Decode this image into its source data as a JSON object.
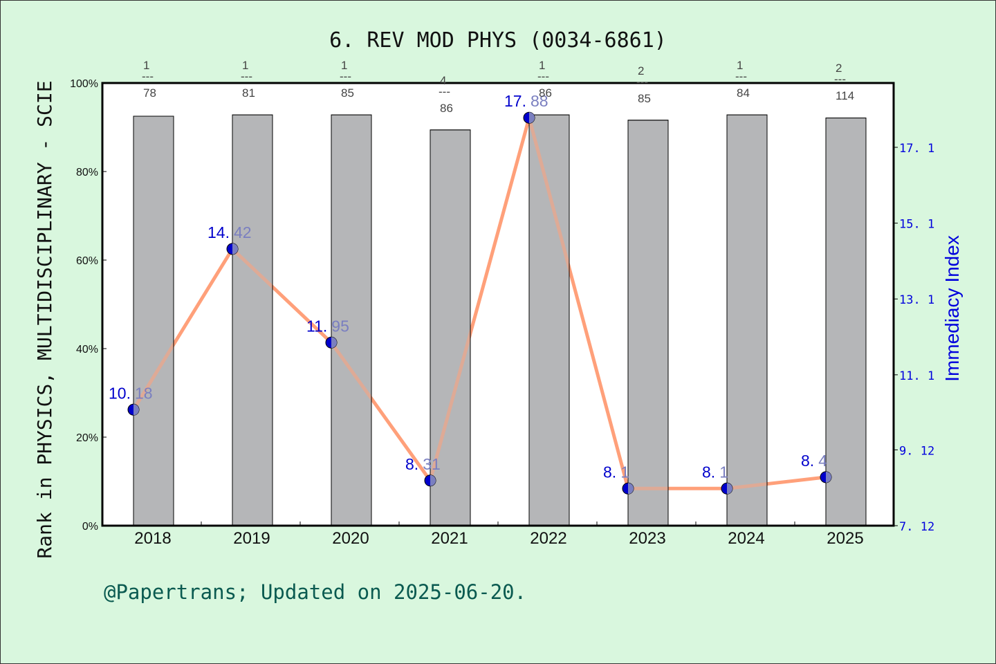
{
  "title": "6. REV MOD PHYS (0034-6861)",
  "footer": "@Papertrans; Updated on 2025-06-20.",
  "colors": {
    "background": "#d9f7de",
    "plot_bg": "#ffffff",
    "bar": "#b5b6b8",
    "line": "#ffa07a",
    "marker": "#0000cc",
    "right_axis": "#0000dd",
    "footer": "#0a5a50"
  },
  "chart_data": {
    "type": "bar+line",
    "title": "6. REV MOD PHYS (0034-6861)",
    "xlabel": "",
    "ylabel": "Rank in PHYSICS, MULTIDISCIPLINARY - SCIE",
    "y2label": "Immediacy Index",
    "categories": [
      "2018",
      "2019",
      "2020",
      "2021",
      "2022",
      "2023",
      "2024",
      "2025"
    ],
    "ylim": [
      0,
      100
    ],
    "yticks": [
      "0%",
      "20%",
      "40%",
      "60%",
      "80%",
      "100%"
    ],
    "y2lim": [
      7.12,
      18.8
    ],
    "y2ticks": [
      "7.12",
      "9.12",
      "11.1",
      "13.1",
      "15.1",
      "17.1"
    ],
    "series": [
      {
        "name": "Rank percentile",
        "type": "bar",
        "axis": "left",
        "values": [
          92.5,
          92.8,
          92.8,
          89.4,
          92.8,
          91.6,
          92.8,
          92.1
        ],
        "rank_labels": [
          {
            "rank": "1",
            "total": "78"
          },
          {
            "rank": "1",
            "total": "81"
          },
          {
            "rank": "1",
            "total": "85"
          },
          {
            "rank": "4",
            "total": "86"
          },
          {
            "rank": "1",
            "total": "86"
          },
          {
            "rank": "2",
            "total": "85"
          },
          {
            "rank": "1",
            "total": "84"
          },
          {
            "rank": "2",
            "total": "114"
          }
        ]
      },
      {
        "name": "Immediacy Index",
        "type": "line",
        "axis": "right",
        "values": [
          10.18,
          14.42,
          11.95,
          8.31,
          17.88,
          8.1,
          8.1,
          8.4
        ],
        "labels": [
          "10.18",
          "14.42",
          "11.95",
          "8.31",
          "17.88",
          "8.1",
          "8.1",
          "8.4"
        ]
      }
    ],
    "grid": false,
    "legend": "none"
  }
}
